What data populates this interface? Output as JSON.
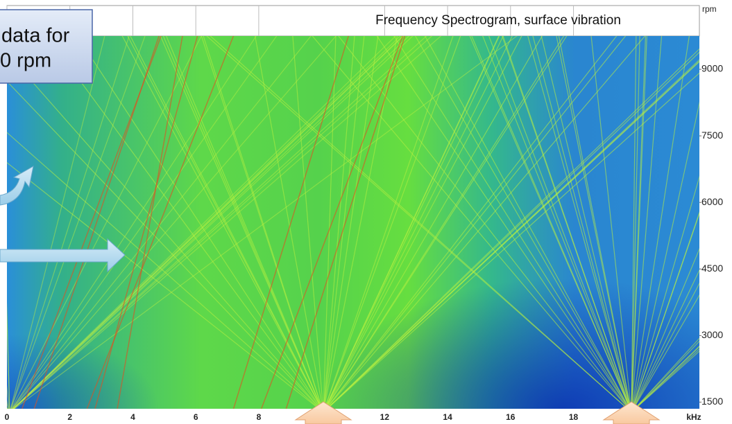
{
  "chart_data": {
    "type": "heatmap",
    "title": "Frequency Spectrogram, surface vibration",
    "xlabel": "kHz",
    "ylabel": "rpm",
    "xlim": [
      0,
      22
    ],
    "xticks": [
      0,
      2,
      4,
      6,
      8,
      12,
      14,
      16,
      18
    ],
    "ylim": [
      1350,
      9750
    ],
    "yticks": [
      1500,
      3000,
      4500,
      6000,
      7500,
      9000
    ],
    "annotations": [
      "data for",
      "0 rpm"
    ]
  }
}
